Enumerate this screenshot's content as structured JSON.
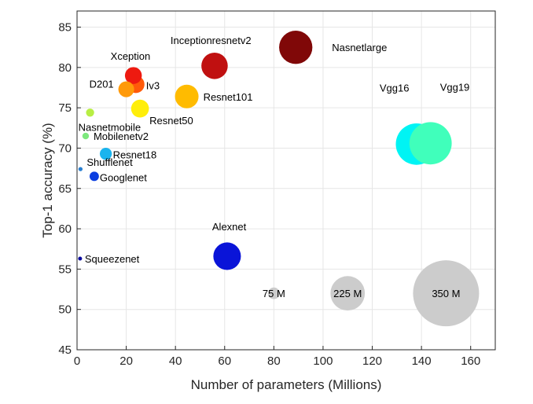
{
  "chart_data": {
    "type": "scatter",
    "title": "",
    "xlabel": "Number of parameters (Millions)",
    "ylabel": "Top-1 accuracy (%)",
    "xlim": [
      0,
      170
    ],
    "ylim": [
      45,
      87
    ],
    "xticks": [
      "0",
      "20",
      "40",
      "60",
      "80",
      "100",
      "120",
      "140",
      "160"
    ],
    "yticks": [
      "45",
      "50",
      "55",
      "60",
      "65",
      "70",
      "75",
      "80",
      "85"
    ],
    "grid": true,
    "points": [
      {
        "label": "Squeezenet",
        "x": 1.24,
        "y": 56.3,
        "color": "#0a0a9e"
      },
      {
        "label": "Shufflenet",
        "x": 1.4,
        "y": 67.4,
        "color": "#2a7fd0"
      },
      {
        "label": "Googlenet",
        "x": 7.0,
        "y": 66.5,
        "color": "#0a3ee0"
      },
      {
        "label": "Resnet18",
        "x": 11.7,
        "y": 69.3,
        "color": "#1ab4ee"
      },
      {
        "label": "Mobilenetv2",
        "x": 3.5,
        "y": 71.5,
        "color": "#7de87d"
      },
      {
        "label": "Nasnetmobile",
        "x": 5.3,
        "y": 74.4,
        "color": "#b8ee44"
      },
      {
        "label": "D201",
        "x": 20.0,
        "y": 77.3,
        "color": "#ff9a0a"
      },
      {
        "label": "Xception",
        "x": 22.9,
        "y": 79.0,
        "color": "#ee1a10"
      },
      {
        "label": "Iv3",
        "x": 23.9,
        "y": 77.9,
        "color": "#ff5a0a"
      },
      {
        "label": "Resnet50",
        "x": 25.6,
        "y": 74.9,
        "color": "#ffee0a"
      },
      {
        "label": "Resnet101",
        "x": 44.6,
        "y": 76.4,
        "color": "#ffbb00"
      },
      {
        "label": "Inceptionresnetv2",
        "x": 55.9,
        "y": 80.2,
        "color": "#c01010"
      },
      {
        "label": "Nasnetlarge",
        "x": 88.9,
        "y": 82.5,
        "color": "#800808"
      },
      {
        "label": "Alexnet",
        "x": 61.0,
        "y": 56.6,
        "color": "#0a14d8"
      },
      {
        "label": "Vgg16",
        "x": 138.0,
        "y": 70.5,
        "color": "#00f4f4"
      },
      {
        "label": "Vgg19",
        "x": 143.7,
        "y": 70.6,
        "color": "#40ffbb"
      }
    ],
    "size_legend": [
      {
        "label": "75 M",
        "x": 80,
        "y": 52,
        "size": 75
      },
      {
        "label": "225 M",
        "x": 110,
        "y": 52,
        "size": 225
      },
      {
        "label": "350 M",
        "x": 150,
        "y": 52,
        "size": 350
      }
    ],
    "legend_color": "#cccccc"
  }
}
